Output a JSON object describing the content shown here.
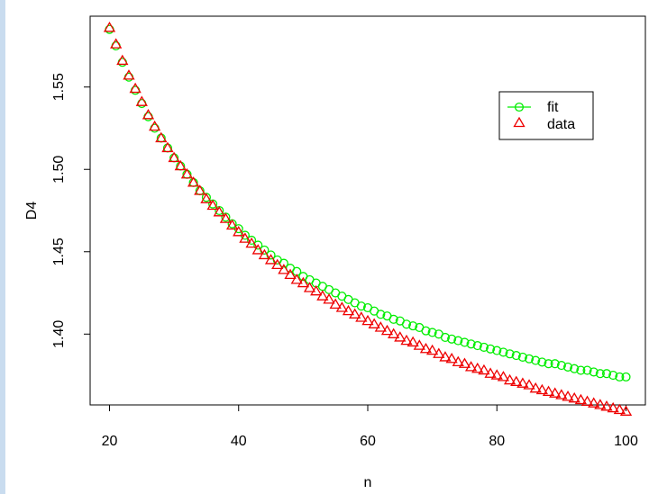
{
  "chart_data": {
    "type": "scatter",
    "title": "",
    "xlabel": "n",
    "ylabel": "D4",
    "xlim": [
      17,
      103
    ],
    "ylim": [
      1.357,
      1.593
    ],
    "xticks": [
      20,
      40,
      60,
      80,
      100
    ],
    "yticks": [
      1.4,
      1.45,
      1.5,
      1.55
    ],
    "ytick_labels": [
      "1.40",
      "1.45",
      "1.50",
      "1.55"
    ],
    "grid": false,
    "legend": {
      "placement": "top-right",
      "entries": [
        "fit",
        "data"
      ]
    },
    "series": [
      {
        "name": "fit",
        "marker": "circle",
        "line_in_legend": true,
        "color": "#00ee00",
        "x_start": 20,
        "x_step": 1,
        "values": [
          1.585,
          1.575,
          1.565,
          1.556,
          1.548,
          1.54,
          1.532,
          1.525,
          1.519,
          1.513,
          1.507,
          1.502,
          1.497,
          1.492,
          1.487,
          1.483,
          1.479,
          1.475,
          1.471,
          1.467,
          1.464,
          1.46,
          1.457,
          1.454,
          1.451,
          1.448,
          1.445,
          1.443,
          1.44,
          1.438,
          1.435,
          1.433,
          1.431,
          1.429,
          1.427,
          1.425,
          1.423,
          1.421,
          1.419,
          1.417,
          1.416,
          1.414,
          1.412,
          1.411,
          1.409,
          1.408,
          1.406,
          1.405,
          1.404,
          1.402,
          1.401,
          1.4,
          1.398,
          1.397,
          1.396,
          1.395,
          1.394,
          1.393,
          1.392,
          1.391,
          1.39,
          1.389,
          1.388,
          1.387,
          1.386,
          1.385,
          1.384,
          1.383,
          1.382,
          1.382,
          1.381,
          1.38,
          1.379,
          1.378,
          1.378,
          1.377,
          1.376,
          1.376,
          1.375,
          1.374,
          1.374
        ]
      },
      {
        "name": "data",
        "marker": "triangle",
        "line_in_legend": false,
        "color": "#ee0000",
        "x_start": 20,
        "x_step": 1,
        "values": [
          1.586,
          1.576,
          1.566,
          1.557,
          1.549,
          1.541,
          1.533,
          1.526,
          1.519,
          1.513,
          1.507,
          1.502,
          1.497,
          1.492,
          1.487,
          1.482,
          1.478,
          1.474,
          1.47,
          1.466,
          1.462,
          1.458,
          1.455,
          1.451,
          1.448,
          1.445,
          1.442,
          1.439,
          1.436,
          1.433,
          1.431,
          1.428,
          1.426,
          1.423,
          1.421,
          1.418,
          1.416,
          1.414,
          1.412,
          1.41,
          1.408,
          1.406,
          1.404,
          1.402,
          1.4,
          1.398,
          1.396,
          1.395,
          1.393,
          1.391,
          1.39,
          1.388,
          1.386,
          1.385,
          1.383,
          1.382,
          1.38,
          1.379,
          1.378,
          1.376,
          1.375,
          1.374,
          1.372,
          1.371,
          1.37,
          1.369,
          1.367,
          1.366,
          1.365,
          1.364,
          1.363,
          1.362,
          1.361,
          1.36,
          1.359,
          1.358,
          1.357,
          1.356,
          1.355,
          1.354,
          1.353
        ]
      }
    ]
  }
}
